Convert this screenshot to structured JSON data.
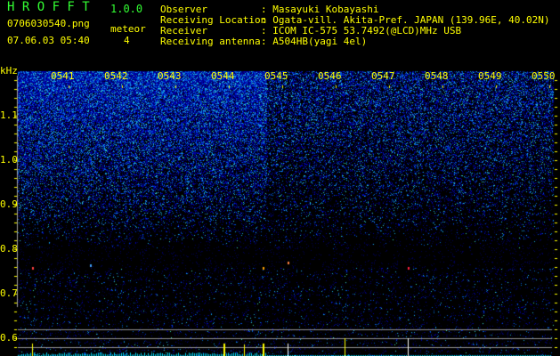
{
  "app": {
    "title": "H R O F F T",
    "version": "1.0.0"
  },
  "file": {
    "name": "0706030540.png",
    "datetime": "07.06.03 05:40"
  },
  "meteor": {
    "label": "meteor",
    "count": "4"
  },
  "info": [
    {
      "label": "Observer",
      "value": ": Masayuki Kobayashi"
    },
    {
      "label": "Receiving Location",
      "value": ": Ogata-vill. Akita-Pref. JAPAN (139.96E, 40.02N)"
    },
    {
      "label": "Receiver",
      "value": ": ICOM IC-575 53.7492(@LCD)MHz USB"
    },
    {
      "label": "Receiving antenna",
      "value": ": A504HB(yagi 4el)"
    }
  ],
  "axis": {
    "y_unit": "kHz",
    "y_ticks": [
      "1.1",
      "1.0",
      "0.9",
      "0.8",
      "0.7",
      "0.6"
    ],
    "x_ticks": [
      "0541",
      "0542",
      "0543",
      "0544",
      "0545",
      "0546",
      "0547",
      "0548",
      "0549",
      "0550"
    ]
  },
  "colors": {
    "text": "#ffff00",
    "title": "#33ff33",
    "histogram": "#00e0ff",
    "meteor_spike": "#ffff00",
    "guide_lines": "#909090"
  },
  "meteor_times": [
    "0540",
    "0544",
    "0545",
    "0547"
  ]
}
